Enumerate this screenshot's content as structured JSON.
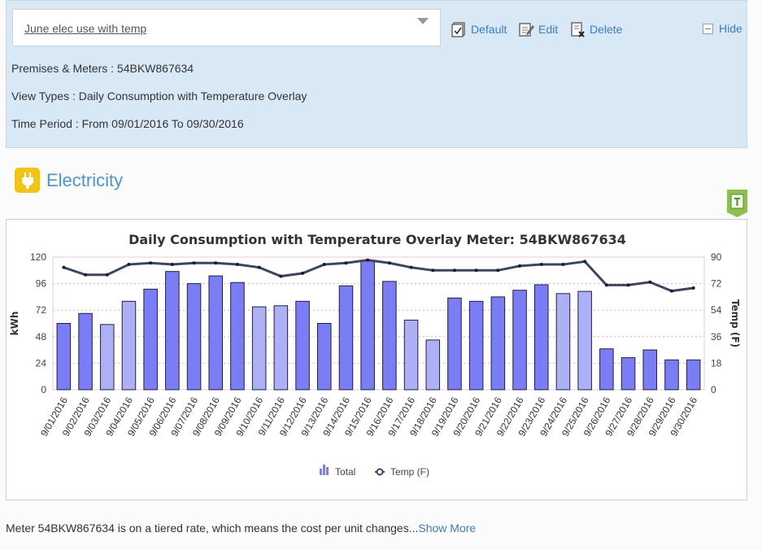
{
  "view": {
    "selected": "June elec use with temp",
    "actions": {
      "default_label": "Default",
      "edit_label": "Edit",
      "delete_label": "Delete"
    },
    "hide_label": "Hide",
    "premises_line": "Premises & Meters : 54BKW867634",
    "view_types_line": "View Types : Daily Consumption with Temperature Overlay",
    "time_period_line": "Time Period : From 09/01/2016 To 09/30/2016"
  },
  "section": {
    "title": "Electricity"
  },
  "footer": {
    "text": "Meter 54BKW867634 is on a tiered rate, which means the cost per unit changes...",
    "show_more": "Show More"
  },
  "colors": {
    "bar_dark": "#7b7df4",
    "bar_light": "#aeb0f5",
    "line": "#3d4560",
    "accent": "#3c7cc0"
  },
  "icons": [
    "default-icon",
    "edit-icon",
    "delete-icon",
    "hide-toggle-icon",
    "plug-icon",
    "export-icon"
  ],
  "chart_data": {
    "type": "bar",
    "title": "Daily Consumption with Temperature Overlay Meter: 54BKW867634",
    "ylabel": "kWh",
    "y2label": "Temp (F)",
    "ylim": [
      0,
      120
    ],
    "y2lim": [
      0,
      90
    ],
    "yticks": [
      0,
      24,
      48,
      72,
      96,
      120
    ],
    "y2ticks": [
      0,
      18,
      36,
      54,
      72,
      90
    ],
    "grid": true,
    "legend_position": "bottom",
    "categories": [
      "9/01/2016",
      "9/02/2016",
      "9/03/2016",
      "9/04/2016",
      "9/05/2016",
      "9/06/2016",
      "9/07/2016",
      "9/08/2016",
      "9/09/2016",
      "9/10/2016",
      "9/11/2016",
      "9/12/2016",
      "9/13/2016",
      "9/14/2016",
      "9/15/2016",
      "9/16/2016",
      "9/17/2016",
      "9/18/2016",
      "9/19/2016",
      "9/20/2016",
      "9/21/2016",
      "9/22/2016",
      "9/23/2016",
      "9/24/2016",
      "9/25/2016",
      "9/26/2016",
      "9/27/2016",
      "9/28/2016",
      "9/29/2016",
      "9/30/2016"
    ],
    "series": [
      {
        "name": "Total",
        "type": "bar",
        "axis": "left",
        "values": [
          60,
          69,
          59,
          80,
          91,
          107,
          96,
          103,
          97,
          75,
          76,
          80,
          60,
          94,
          117,
          98,
          63,
          45,
          83,
          80,
          84,
          90,
          95,
          87,
          89,
          37,
          29,
          36,
          27,
          27
        ],
        "weekend": [
          false,
          false,
          true,
          true,
          false,
          false,
          false,
          false,
          false,
          true,
          true,
          false,
          false,
          false,
          false,
          false,
          true,
          true,
          false,
          false,
          false,
          false,
          false,
          true,
          true,
          false,
          false,
          false,
          false,
          false
        ]
      },
      {
        "name": "Temp (F)",
        "type": "line",
        "axis": "right",
        "values": [
          83,
          78,
          78,
          85,
          86,
          85,
          86,
          86,
          85,
          83,
          77,
          79,
          85,
          86,
          88,
          86,
          83,
          81,
          81,
          81,
          81,
          84,
          85,
          85,
          87,
          71,
          71,
          73,
          67,
          69
        ]
      }
    ]
  }
}
